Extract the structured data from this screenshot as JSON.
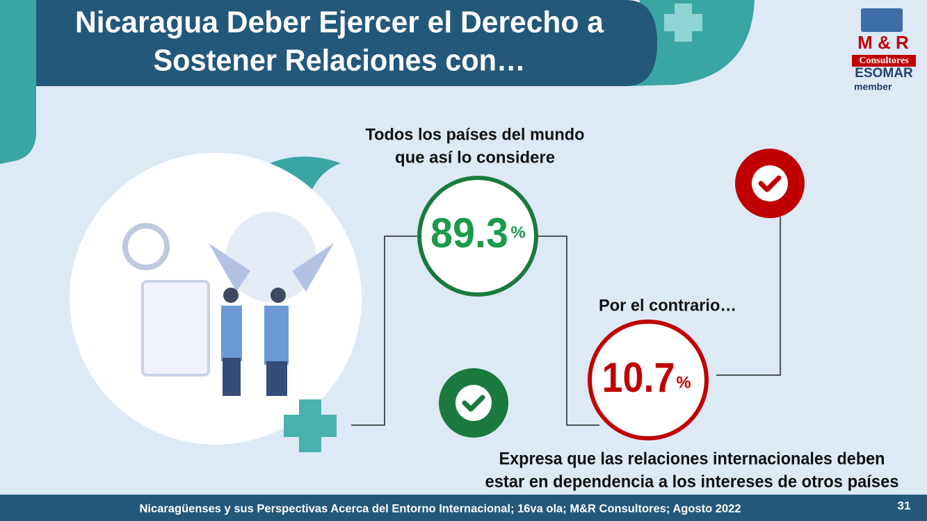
{
  "header": {
    "title_lines": [
      "Nicaragua Deber Ejercer el Derecho a",
      "Sostener Relaciones con…"
    ]
  },
  "logo": {
    "brand": "M & R",
    "subbrand": "Consultores",
    "association": "ESOMAR",
    "membership": "member"
  },
  "stats": [
    {
      "label_lines": [
        "Todos  los países del mundo",
        "que así lo considere"
      ],
      "value": 89.3,
      "unit": "%"
    },
    {
      "label_lines": [
        "Por el contrario…"
      ],
      "value": 10.7,
      "unit": "%",
      "description_lines": [
        "Expresa que las relaciones internacionales deben",
        "estar en dependencia a los intereses de otros países"
      ]
    }
  ],
  "footer": {
    "source": "Nicaragüenses y sus Perspectivas Acerca del Entorno Internacional; 16va ola; M&R Consultores; Agosto 2022",
    "page_number": 31
  }
}
